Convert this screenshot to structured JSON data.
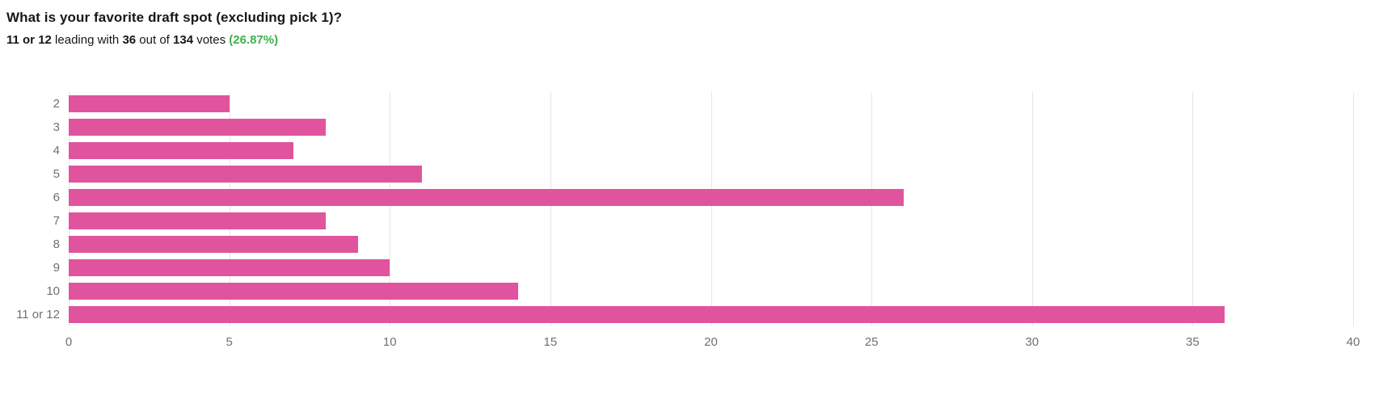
{
  "header": {
    "title": "What is your favorite draft spot (excluding pick 1)?",
    "subtitle": {
      "leader": "11 or 12",
      "mid1": " leading with ",
      "votes": "36",
      "mid2": " out of ",
      "total": "134",
      "mid3": " votes ",
      "percent": "(26.87%)"
    }
  },
  "colors": {
    "bar": "#e0549e",
    "percent_green": "#3cb34a",
    "gridline": "#e6e6e6",
    "axis_label": "#6e7073"
  },
  "chart_data": {
    "type": "bar",
    "orientation": "horizontal",
    "title": "What is your favorite draft spot (excluding pick 1)?",
    "categories": [
      "2",
      "3",
      "4",
      "5",
      "6",
      "7",
      "8",
      "9",
      "10",
      "11 or 12"
    ],
    "values": [
      5,
      8,
      7,
      11,
      26,
      8,
      9,
      10,
      14,
      36
    ],
    "total_votes": 134,
    "leading_category": "11 or 12",
    "leading_votes": 36,
    "leading_percent": "26.87%",
    "xlabel": "",
    "ylabel": "",
    "xlim": [
      0,
      40
    ],
    "xticks": [
      0,
      5,
      10,
      15,
      20,
      25,
      30,
      35,
      40
    ],
    "grid": true,
    "legend": false,
    "bar_color": "#e0549e"
  }
}
